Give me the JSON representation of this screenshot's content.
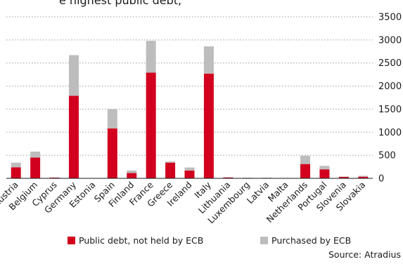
{
  "header_fragment": "e highest public debt,",
  "legend": {
    "items": [
      {
        "label": "Public debt, not held by ECB",
        "color": "#d2001e"
      },
      {
        "label": "Purchased by ECB",
        "color": "#bdbdbd"
      }
    ]
  },
  "source": "Source: Atradius",
  "chart_data": {
    "type": "bar",
    "stacked": true,
    "title": "",
    "xlabel": "",
    "ylabel": "",
    "ylim": [
      0,
      3500
    ],
    "y_axis_position": "right",
    "yticks": [
      0,
      500,
      1000,
      1500,
      2000,
      2500,
      3000,
      3500
    ],
    "ytick_labels": [
      "0",
      "500",
      "1000",
      "1500",
      "2000",
      "2500",
      "3000",
      "3500"
    ],
    "grid": "horizontal-dotted",
    "legend_position": "bottom",
    "categories": [
      "Austria",
      "Belgium",
      "Cyprus",
      "Germany",
      "Estonia",
      "Spain",
      "Finland",
      "France",
      "Greece",
      "Ireland",
      "Italy",
      "Lithuania",
      "Luxembourg",
      "Latvia",
      "Malta",
      "Netherlands",
      "Portugal",
      "Slovenia",
      "Slovakia"
    ],
    "series": [
      {
        "name": "Public debt, not held by ECB",
        "color": "#d2001e",
        "values": [
          240,
          450,
          15,
          1790,
          2,
          1080,
          115,
          2290,
          340,
          170,
          2270,
          20,
          10,
          10,
          7,
          310,
          195,
          30,
          35
        ]
      },
      {
        "name": "Purchased by ECB",
        "color": "#bdbdbd",
        "values": [
          100,
          130,
          5,
          880,
          0,
          420,
          55,
          690,
          25,
          65,
          590,
          5,
          5,
          5,
          3,
          180,
          75,
          10,
          20
        ]
      }
    ]
  }
}
